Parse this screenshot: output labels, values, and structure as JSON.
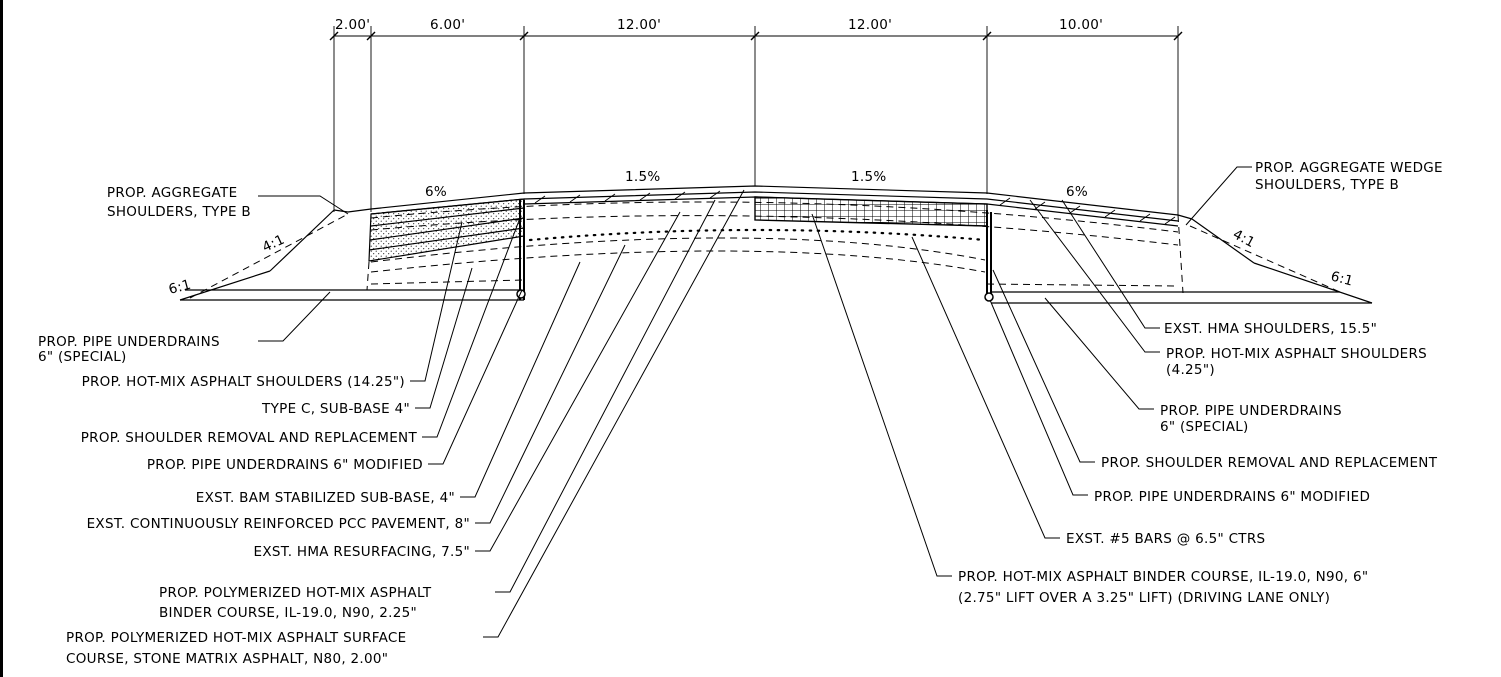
{
  "dimensions": [
    {
      "label": "2.00'"
    },
    {
      "label": "6.00'"
    },
    {
      "label": "12.00'"
    },
    {
      "label": "12.00'"
    },
    {
      "label": "10.00'"
    }
  ],
  "slopes": {
    "left_shoulder": "6%",
    "left_lane": "1.5%",
    "right_lane": "1.5%",
    "right_shoulder": "6%",
    "left_inslope": "4:1",
    "left_foreslope": "6:1",
    "right_inslope": "4:1",
    "right_foreslope": "6:1"
  },
  "left_callouts": [
    {
      "lines": [
        "PROP. AGGREGATE",
        "SHOULDERS, TYPE B"
      ]
    },
    {
      "lines": [
        "PROP. PIPE UNDERDRAINS",
        "6\" (SPECIAL)"
      ]
    },
    {
      "lines": [
        "PROP. HOT-MIX ASPHALT SHOULDERS (14.25\")"
      ]
    },
    {
      "lines": [
        "TYPE C, SUB-BASE 4\""
      ]
    },
    {
      "lines": [
        "PROP. SHOULDER REMOVAL AND REPLACEMENT"
      ]
    },
    {
      "lines": [
        "PROP. PIPE UNDERDRAINS 6\" MODIFIED"
      ]
    },
    {
      "lines": [
        "EXST. BAM STABILIZED SUB-BASE, 4\""
      ]
    },
    {
      "lines": [
        "EXST. CONTINUOUSLY REINFORCED PCC PAVEMENT, 8\""
      ]
    },
    {
      "lines": [
        "EXST. HMA RESURFACING, 7.5\""
      ]
    },
    {
      "lines": [
        "PROP. POLYMERIZED HOT-MIX ASPHALT",
        "BINDER COURSE, IL-19.0, N90, 2.25\""
      ]
    },
    {
      "lines": [
        "PROP. POLYMERIZED HOT-MIX ASPHALT SURFACE",
        "COURSE, STONE MATRIX ASPHALT, N80, 2.00\""
      ]
    }
  ],
  "right_callouts": [
    {
      "lines": [
        "PROP. AGGREGATE WEDGE",
        "SHOULDERS, TYPE B"
      ]
    },
    {
      "lines": [
        "EXST. HMA SHOULDERS, 15.5\""
      ]
    },
    {
      "lines": [
        "PROP. HOT-MIX ASPHALT SHOULDERS",
        "(4.25\")"
      ]
    },
    {
      "lines": [
        "PROP. PIPE UNDERDRAINS",
        "6\" (SPECIAL)"
      ]
    },
    {
      "lines": [
        "PROP. SHOULDER REMOVAL AND REPLACEMENT"
      ]
    },
    {
      "lines": [
        "PROP. PIPE UNDERDRAINS 6\" MODIFIED"
      ]
    },
    {
      "lines": [
        "EXST. #5 BARS @ 6.5\" CTRS"
      ]
    },
    {
      "lines": [
        "PROP. HOT-MIX ASPHALT BINDER COURSE, IL-19.0, N90, 6\"",
        "(2.75\" LIFT OVER A 3.25\" LIFT) (DRIVING LANE ONLY)"
      ]
    }
  ]
}
